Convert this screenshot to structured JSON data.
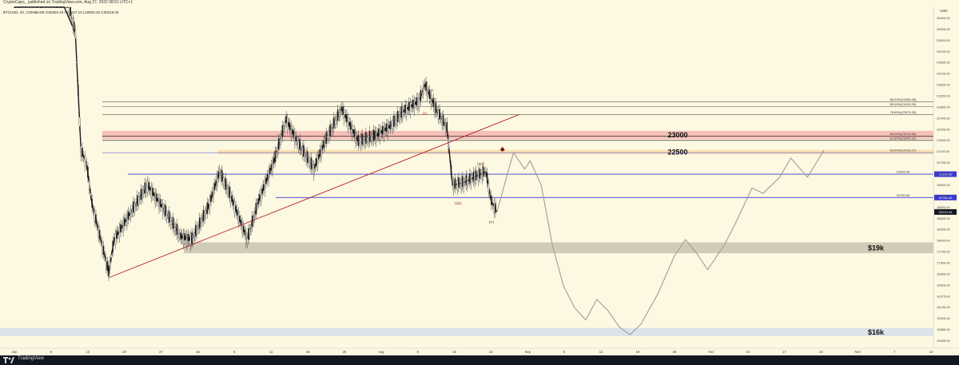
{
  "header": {
    "published": "CryptoCapo_ published on TradingView.com, Aug 27, 2022 08:51 UTC+1",
    "symbol_info": "BTCUSD, 4h, COINBASE",
    "ohlc": "O20204.43  H20247.12  L19932.42  C20219.43",
    "currency": "USD"
  },
  "footer": {
    "brand": "TradingView"
  },
  "colors": {
    "background": "#fdf8e1",
    "candle": "#1a1a1a",
    "projection": "#9e9e9e",
    "trendline": "#b22222",
    "support_band": "#c8c4b0",
    "blue_band": "#d6e0ea",
    "red_zone": "#f4b6b0",
    "orange_zone": "#f9dca8",
    "level_blue": "#3a3ad0"
  },
  "chart_data": {
    "type": "line",
    "title": "",
    "xlabel": "",
    "ylabel": "",
    "ylim": [
      15325,
      27750
    ],
    "price_ticks": [
      "26400.00",
      "26000.00",
      "25500.00",
      "25100.00",
      "24600.00",
      "24100.00",
      "23600.00",
      "23200.00",
      "22800.00",
      "22400.00",
      "22000.00",
      "21600.00",
      "21100.00",
      "20700.00",
      "20400.00",
      "19600.00",
      "19400.00",
      "18900.00",
      "18600.00",
      "18300.00",
      "18000.00",
      "17700.00",
      "17300.00",
      "16850.00",
      "16625.00",
      "16375.00",
      "16130.00",
      "15905.00",
      "15685.00",
      "15465.00"
    ],
    "time_ticks": [
      "Jun",
      "6",
      "13",
      "20",
      "27",
      "Jul",
      "5",
      "11",
      "18",
      "25",
      "Aug",
      "8",
      "15",
      "22",
      "Sep",
      "5",
      "12",
      "19",
      "26",
      "Oct",
      "10",
      "17",
      "24",
      "Nov",
      "7",
      "14"
    ],
    "time_ticks_extra": [
      "29",
      "Sep"
    ],
    "candle_series": {
      "name": "BTCUSD",
      "points": [
        [
          "Jun 1",
          31500
        ],
        [
          "Jun 6",
          29800
        ],
        [
          "Jun 10",
          28500
        ],
        [
          "Jun 12",
          26800
        ],
        [
          "Jun 13",
          22500
        ],
        [
          "Jun 14",
          22000
        ],
        [
          "Jun 15",
          20500
        ],
        [
          "Jun 18",
          18000
        ],
        [
          "Jun 19",
          19200
        ],
        [
          "Jun 22",
          20200
        ],
        [
          "Jun 25",
          21200
        ],
        [
          "Jun 28",
          20300
        ],
        [
          "Jul 1",
          19300
        ],
        [
          "Jul 3",
          19200
        ],
        [
          "Jul 6",
          20400
        ],
        [
          "Jul 8",
          21700
        ],
        [
          "Jul 10",
          20800
        ],
        [
          "Jul 13",
          19200
        ],
        [
          "Jul 15",
          20600
        ],
        [
          "Jul 18",
          22200
        ],
        [
          "Jul 20",
          23600
        ],
        [
          "Jul 22",
          22800
        ],
        [
          "Jul 25",
          21800
        ],
        [
          "Jul 27",
          22800
        ],
        [
          "Jul 30",
          24000
        ],
        [
          "Aug 2",
          22800
        ],
        [
          "Aug 5",
          23000
        ],
        [
          "Aug 8",
          23400
        ],
        [
          "Aug 10",
          23900
        ],
        [
          "Aug 13",
          24300
        ],
        [
          "Aug 14",
          24900
        ],
        [
          "Aug 16",
          24000
        ],
        [
          "Aug 18",
          23300
        ],
        [
          "Aug 19",
          21200
        ],
        [
          "Aug 21",
          21300
        ],
        [
          "Aug 23",
          21500
        ],
        [
          "Aug 25",
          21700
        ],
        [
          "Aug 26",
          20600
        ],
        [
          "Aug 27",
          20219
        ]
      ]
    },
    "projection_series": {
      "name": "projection",
      "points": [
        [
          "Aug 27",
          20219
        ],
        [
          "Aug 29",
          21700
        ],
        [
          "Aug 30",
          22400
        ],
        [
          "Sep 1",
          21800
        ],
        [
          "Sep 2",
          22100
        ],
        [
          "Sep 4",
          21200
        ],
        [
          "Sep 6",
          19000
        ],
        [
          "Sep 8",
          17500
        ],
        [
          "Sep 10",
          16700
        ],
        [
          "Sep 12",
          16250
        ],
        [
          "Sep 14",
          17000
        ],
        [
          "Sep 16",
          16600
        ],
        [
          "Sep 18",
          16000
        ],
        [
          "Sep 20",
          15700
        ],
        [
          "Sep 22",
          16100
        ],
        [
          "Sep 25",
          17200
        ],
        [
          "Sep 28",
          18600
        ],
        [
          "Sep 30",
          19200
        ],
        [
          "Oct 2",
          18700
        ],
        [
          "Oct 4",
          18100
        ],
        [
          "Oct 7",
          19000
        ],
        [
          "Oct 9",
          19800
        ],
        [
          "Oct 12",
          21100
        ],
        [
          "Oct 14",
          20900
        ],
        [
          "Oct 17",
          21500
        ],
        [
          "Oct 19",
          22200
        ],
        [
          "Oct 22",
          21500
        ],
        [
          "Oct 25",
          22500
        ]
      ]
    },
    "horizontal_levels": [
      {
        "price": 24270,
        "label": "88.20%(24266.05)",
        "color": "#555555"
      },
      {
        "price": 24100,
        "label": "85.00%(24126.05)",
        "color": "#555555"
      },
      {
        "price": 23800,
        "label": "78.60%(23974.53)",
        "color": "#555555"
      },
      {
        "price": 23000,
        "label": "65.00%(23218.58)",
        "color": "#111111"
      },
      {
        "price": 22850,
        "label": "61.80%(23045.92)",
        "color": "#111111"
      },
      {
        "price": 22400,
        "label": "50.00%(22415.27)",
        "color": "#3a3ad0"
      },
      {
        "price": 21609,
        "label": "21609.00",
        "color": "#3a3ad0"
      },
      {
        "price": 20750,
        "label": "20750.00",
        "color": "#3a3ad0"
      }
    ],
    "zones": [
      {
        "label": "23000",
        "low": 22900,
        "high": 23200
      },
      {
        "label": "22500",
        "low": 22350,
        "high": 22500
      },
      {
        "label": "$19k",
        "low": 18700,
        "high": 19100
      },
      {
        "label": "$16k",
        "low": 15650,
        "high": 15950
      }
    ],
    "wave_labels": [
      "(ii)",
      "(i)",
      "(iv)",
      "(iii)",
      "(v)"
    ],
    "price_badges": [
      "21609.00",
      "20750.00",
      "20219.43"
    ],
    "trendline": {
      "from": [
        "Jun 18",
        17800
      ],
      "to": [
        "Aug 31",
        23800
      ]
    },
    "arrow_marker": {
      "at": [
        "Aug 28",
        22500
      ]
    }
  }
}
